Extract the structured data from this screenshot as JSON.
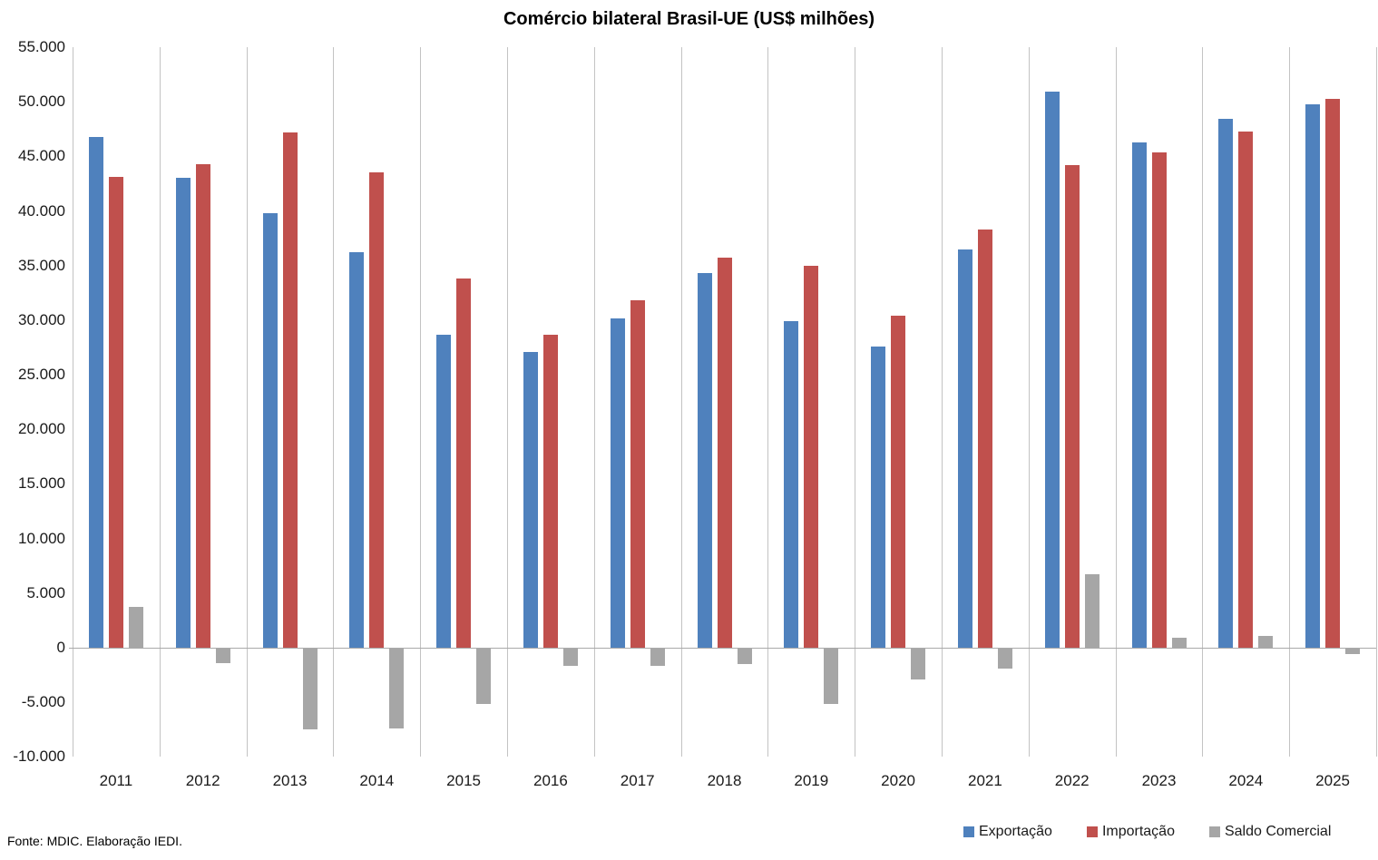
{
  "source_note": "Fonte: MDIC. Elaboração IEDI.",
  "colors": {
    "export_blue": "#4F81BD",
    "import_red": "#C0504D",
    "saldo_gray": "#A6A6A6",
    "gridline": "#C3C3C3",
    "axis_line": "#A9A9A9",
    "text": "#000000"
  },
  "chart_data": {
    "type": "bar",
    "title": "Comércio bilateral Brasil-UE (US$ milhões)",
    "unit": "US$ milhões",
    "categories": [
      "2011",
      "2012",
      "2013",
      "2014",
      "2015",
      "2016",
      "2017",
      "2018",
      "2019",
      "2020",
      "2021",
      "2022",
      "2023",
      "2024",
      "2025"
    ],
    "series": [
      {
        "name": "Exportação",
        "color": "#4F81BD",
        "values": [
          46800,
          43000,
          39800,
          36200,
          28700,
          27100,
          30200,
          34300,
          29900,
          27600,
          36500,
          50900,
          46300,
          48400,
          49800
        ]
      },
      {
        "name": "Importação",
        "color": "#C0504D",
        "values": [
          43100,
          44300,
          47200,
          43500,
          33800,
          28700,
          31800,
          35700,
          35000,
          30400,
          38300,
          44200,
          45400,
          47300,
          50300
        ]
      },
      {
        "name": "Saldo Comercial",
        "color": "#A6A6A6",
        "values": [
          3700,
          -1300,
          -7400,
          -7300,
          -5100,
          -1600,
          -1600,
          -1400,
          -5100,
          -2800,
          -1800,
          6700,
          900,
          1100,
          -500
        ]
      }
    ],
    "ylim": [
      -10000,
      55000
    ],
    "ytick_step": 5000,
    "yticks": [
      {
        "value": 55000,
        "label": "55.000"
      },
      {
        "value": 50000,
        "label": "50.000"
      },
      {
        "value": 45000,
        "label": "45.000"
      },
      {
        "value": 40000,
        "label": "40.000"
      },
      {
        "value": 35000,
        "label": "35.000"
      },
      {
        "value": 30000,
        "label": "30.000"
      },
      {
        "value": 25000,
        "label": "25.000"
      },
      {
        "value": 20000,
        "label": "20.000"
      },
      {
        "value": 15000,
        "label": "15.000"
      },
      {
        "value": 10000,
        "label": "10.000"
      },
      {
        "value": 5000,
        "label": "5.000"
      },
      {
        "value": 0,
        "label": "0"
      },
      {
        "value": -5000,
        "label": "-5.000"
      },
      {
        "value": -10000,
        "label": "-10.000"
      }
    ],
    "grid": "vertical-only",
    "legend_position": "bottom-right"
  }
}
